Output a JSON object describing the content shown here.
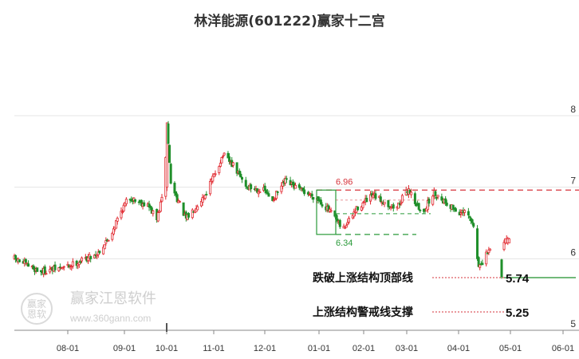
{
  "title": "林洋能源(601222)赢家十二宫",
  "colors": {
    "up": "#e0252c",
    "down": "#1f8f2a",
    "resist": "#d6333b",
    "support": "#2a9a3a",
    "grid": "#e4e4e4"
  },
  "chart_data": {
    "type": "candlestick",
    "ylim": [
      5,
      8
    ],
    "y_ticks": [
      "5",
      "6",
      "7",
      "8"
    ],
    "x_ticks": [
      "08-01",
      "09-01",
      "10-01",
      "11-01",
      "12-01",
      "01-01",
      "02-01",
      "03-01",
      "04-01",
      "05-01",
      "06-01"
    ],
    "box_high_label": "6.96",
    "box_low_label": "6.34",
    "lines": [
      {
        "name": "跌破上涨结构顶部线",
        "value": "5.74"
      },
      {
        "name": "上涨结构警戒线支撑",
        "value": "5.25"
      }
    ],
    "anchors": [
      {
        "day": 0,
        "price": 6.0
      },
      {
        "day": 20,
        "price": 5.82
      },
      {
        "day": 40,
        "price": 5.88
      },
      {
        "day": 65,
        "price": 6.07
      },
      {
        "day": 75,
        "price": 6.3
      },
      {
        "day": 82,
        "price": 6.6
      },
      {
        "day": 90,
        "price": 6.86
      },
      {
        "day": 105,
        "price": 6.75
      },
      {
        "day": 112,
        "price": 6.55
      },
      {
        "day": 118,
        "price": 6.97
      },
      {
        "day": 120,
        "price": 7.9
      },
      {
        "day": 123,
        "price": 7.05
      },
      {
        "day": 135,
        "price": 6.55
      },
      {
        "day": 150,
        "price": 6.9
      },
      {
        "day": 158,
        "price": 7.2
      },
      {
        "day": 164,
        "price": 7.45
      },
      {
        "day": 172,
        "price": 7.3
      },
      {
        "day": 183,
        "price": 7.0
      },
      {
        "day": 197,
        "price": 6.95
      },
      {
        "day": 202,
        "price": 6.8
      },
      {
        "day": 213,
        "price": 7.08
      },
      {
        "day": 225,
        "price": 6.96
      },
      {
        "day": 238,
        "price": 6.85
      },
      {
        "day": 250,
        "price": 6.62
      },
      {
        "day": 258,
        "price": 6.4
      },
      {
        "day": 270,
        "price": 6.72
      },
      {
        "day": 282,
        "price": 6.88
      },
      {
        "day": 300,
        "price": 6.7
      },
      {
        "day": 310,
        "price": 6.98
      },
      {
        "day": 320,
        "price": 6.62
      },
      {
        "day": 330,
        "price": 6.92
      },
      {
        "day": 342,
        "price": 6.75
      },
      {
        "day": 350,
        "price": 6.64
      },
      {
        "day": 356,
        "price": 6.63
      },
      {
        "day": 362,
        "price": 6.42
      },
      {
        "day": 364,
        "price": 5.95
      },
      {
        "day": 367,
        "price": 5.88
      },
      {
        "day": 372,
        "price": 6.1
      },
      {
        "day": 380,
        "price": 6.18
      },
      {
        "day": 390,
        "price": 6.35
      }
    ],
    "volatility": 0.045
  },
  "watermark": {
    "brand": "赢家江恩软件",
    "url": "www.360gann.com",
    "seal": "赢家\n恩软"
  }
}
